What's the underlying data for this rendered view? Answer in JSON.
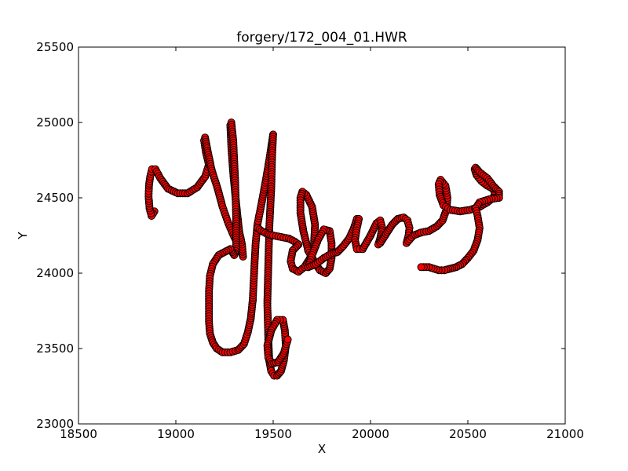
{
  "chart_data": {
    "type": "scatter",
    "title": "forgery/172_004_01.HWR",
    "xlabel": "X",
    "ylabel": "Y",
    "xlim": [
      18500,
      21000
    ],
    "ylim": [
      23000,
      25500
    ],
    "xticks": [
      18500,
      19000,
      19500,
      20000,
      20500,
      21000
    ],
    "yticks": [
      23000,
      23500,
      24000,
      24500,
      25000,
      25500
    ],
    "xtick_labels": [
      "18500",
      "19000",
      "19500",
      "20000",
      "20500",
      "21000"
    ],
    "ytick_labels": [
      "23000",
      "23500",
      "24000",
      "24500",
      "25000",
      "25500"
    ],
    "grid": false,
    "legend": "none",
    "colors": {
      "marker_fill": "#ff0000",
      "marker_edge": "#000000",
      "line": "#ff0000",
      "axes": "#000000",
      "background": "#ffffff"
    },
    "series": [
      {
        "x": [
          18890,
          18875,
          18865,
          18860,
          18862,
          18868,
          18878,
          18895,
          18920,
          18960,
          19010,
          19060,
          19110,
          19150,
          19170
        ],
        "y": [
          24410,
          24380,
          24430,
          24510,
          24580,
          24640,
          24690,
          24690,
          24630,
          24560,
          24530,
          24530,
          24570,
          24640,
          24720
        ]
      },
      {
        "x": [
          19170,
          19155,
          19145,
          19150,
          19165,
          19185,
          19215,
          19240,
          19270,
          19300,
          19330,
          19345,
          19340,
          19325
        ],
        "y": [
          24720,
          24800,
          24880,
          24900,
          24800,
          24680,
          24560,
          24440,
          24330,
          24240,
          24170,
          24110,
          24190,
          24280
        ]
      },
      {
        "x": [
          19325,
          19310,
          19295,
          19285,
          19280,
          19285,
          19295,
          19305,
          19310,
          19310
        ],
        "y": [
          24280,
          24460,
          24660,
          24840,
          24980,
          25000,
          24880,
          24600,
          24360,
          24160
        ]
      },
      {
        "x": [
          19310,
          19300,
          19290,
          19280,
          19250,
          19220,
          19190,
          19175,
          19170,
          19170,
          19170,
          19175,
          19190,
          19210,
          19240,
          19280,
          19320,
          19350,
          19370,
          19385,
          19395
        ],
        "y": [
          24160,
          24120,
          24140,
          24160,
          24140,
          24120,
          24060,
          23980,
          23880,
          23780,
          23680,
          23600,
          23540,
          23500,
          23475,
          23475,
          23490,
          23530,
          23610,
          23700,
          23820
        ]
      },
      {
        "x": [
          19395,
          19400,
          19405,
          19410,
          19420,
          19440,
          19460,
          19480,
          19495,
          19500,
          19495,
          19490,
          19480,
          19475,
          19470,
          19475
        ],
        "y": [
          23820,
          23950,
          24080,
          24200,
          24330,
          24460,
          24600,
          24750,
          24880,
          24920,
          24800,
          24560,
          24300,
          24050,
          23800,
          23560
        ]
      },
      {
        "x": [
          19475,
          19480,
          19490,
          19505,
          19520,
          19540,
          19555,
          19565,
          19560,
          19550,
          19520,
          19490,
          19470,
          19475,
          19495,
          19525,
          19555,
          19575
        ],
        "y": [
          23560,
          23420,
          23350,
          23320,
          23320,
          23350,
          23420,
          23520,
          23620,
          23690,
          23690,
          23620,
          23520,
          23440,
          23400,
          23410,
          23470,
          23560
        ]
      },
      {
        "x": [
          19420,
          19440,
          19470,
          19500,
          19540,
          19580,
          19610,
          19630
        ],
        "y": [
          24300,
          24280,
          24260,
          24250,
          24240,
          24230,
          24210,
          24190
        ]
      },
      {
        "x": [
          19630,
          19600,
          19590,
          19600,
          19630,
          19660,
          19690,
          19710,
          19715,
          19700,
          19670,
          19650,
          19640,
          19640,
          19655,
          19680
        ],
        "y": [
          24190,
          24150,
          24080,
          24030,
          24010,
          24040,
          24100,
          24200,
          24320,
          24440,
          24520,
          24540,
          24500,
          24400,
          24280,
          24150
        ]
      },
      {
        "x": [
          19680,
          19710,
          19740,
          19770,
          19790,
          19800,
          19800,
          19790,
          19760,
          19730,
          19700,
          19680
        ],
        "y": [
          24150,
          24080,
          24020,
          24000,
          24030,
          24100,
          24200,
          24280,
          24290,
          24220,
          24120,
          24040
        ]
      },
      {
        "x": [
          19680,
          19720,
          19760,
          19800,
          19830,
          19860,
          19890,
          19915,
          19930,
          19940,
          19930,
          19920,
          19930,
          19960,
          20000
        ],
        "y": [
          24040,
          24060,
          24100,
          24130,
          24140,
          24180,
          24230,
          24300,
          24360,
          24360,
          24300,
          24220,
          24160,
          24160,
          24250
        ]
      },
      {
        "x": [
          20000,
          20030,
          20050,
          20060,
          20050,
          20040,
          20050,
          20080,
          20110,
          20140,
          20170,
          20190,
          20200,
          20195,
          20185
        ],
        "y": [
          24250,
          24330,
          24350,
          24300,
          24230,
          24190,
          24200,
          24260,
          24320,
          24360,
          24370,
          24350,
          24300,
          24250,
          24200
        ]
      },
      {
        "x": [
          20185,
          20220,
          20260,
          20300,
          20340,
          20370,
          20390,
          20395,
          20385,
          20360,
          20350,
          20355,
          20375,
          20410,
          20460,
          20510,
          20560
        ],
        "y": [
          24200,
          24250,
          24270,
          24280,
          24310,
          24350,
          24420,
          24500,
          24580,
          24620,
          24590,
          24520,
          24450,
          24420,
          24410,
          24420,
          24440
        ]
      },
      {
        "x": [
          20560,
          20600,
          20630,
          20640,
          20630,
          20600,
          20570,
          20545,
          20535,
          20540,
          20560,
          20600,
          20630,
          20660,
          20660
        ],
        "y": [
          24440,
          24470,
          24500,
          24530,
          24560,
          24580,
          24610,
          24650,
          24690,
          24700,
          24670,
          24630,
          24580,
          24540,
          24500
        ]
      },
      {
        "x": [
          20660,
          20610,
          20560,
          20540,
          20550,
          20560,
          20550,
          20530,
          20500,
          20470,
          20440,
          20410,
          20380,
          20350,
          20300,
          20260
        ],
        "y": [
          24500,
          24490,
          24470,
          24430,
          24380,
          24300,
          24220,
          24150,
          24100,
          24060,
          24040,
          24030,
          24020,
          24020,
          24040,
          24040
        ]
      }
    ]
  }
}
